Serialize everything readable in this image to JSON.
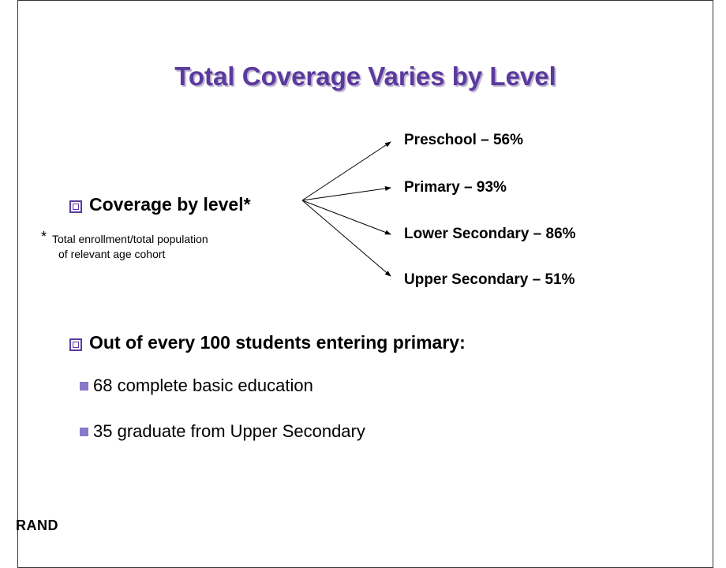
{
  "title": "Total Coverage Varies by Level",
  "coverage": {
    "heading": "Coverage by level*",
    "footnote": {
      "mark": "*",
      "text": "Total enrollment/total population",
      "text2": "of relevant age cohort"
    },
    "levels": [
      "Preschool – 56%",
      "Primary – 93%",
      "Lower Secondary – 86%",
      "Upper Secondary – 51%"
    ]
  },
  "flow": {
    "heading": "Out of every 100 students entering primary:",
    "items": [
      "68 complete basic education",
      "35 graduate from Upper Secondary"
    ]
  },
  "footer": "RAND"
}
